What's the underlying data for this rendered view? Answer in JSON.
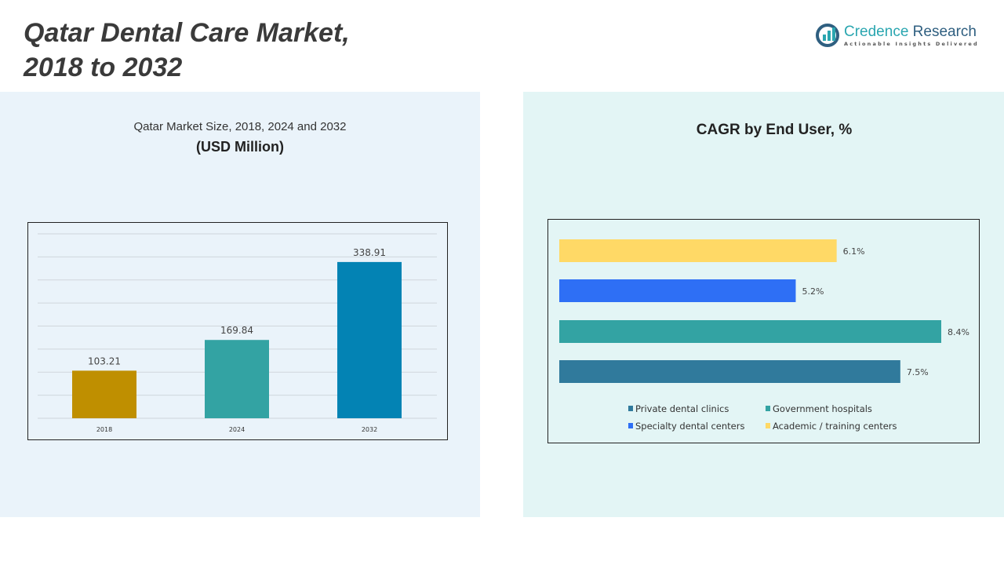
{
  "header": {
    "title_line1": "Qatar Dental Care Market,",
    "title_line2": "2018 to 2032"
  },
  "logo": {
    "name_part1": "Credence",
    "name_part2": "Research",
    "tagline": "Actionable Insights Delivered"
  },
  "chart_data": [
    {
      "type": "bar",
      "title": "Qatar Market Size, 2018, 2024 and 2032",
      "subtitle": "(USD Million)",
      "categories": [
        "2018",
        "2024",
        "2032"
      ],
      "values": [
        103.21,
        169.84,
        338.91
      ],
      "value_labels": [
        "103.21",
        "169.84",
        "338.91"
      ],
      "colors": [
        "#bf8f00",
        "#33a3a3",
        "#0383b4"
      ],
      "ylim": [
        0,
        400
      ],
      "grid": true
    },
    {
      "type": "bar",
      "orientation": "horizontal",
      "title": "CAGR by End User, %",
      "categories": [
        "Academic / training centers",
        "Specialty dental centers",
        "Government hospitals",
        "Private dental clinics"
      ],
      "values": [
        6.1,
        5.2,
        8.4,
        7.5
      ],
      "value_labels": [
        "6.1%",
        "5.2%",
        "8.4%",
        "7.5%"
      ],
      "colors": [
        "#ffd966",
        "#2e6ff5",
        "#33a3a3",
        "#307a9c"
      ],
      "xlim": [
        0,
        8.4
      ],
      "grid": false,
      "legend": {
        "placement": "bottom",
        "items": [
          {
            "label": "Private dental clinics",
            "color": "#307a9c"
          },
          {
            "label": "Government hospitals",
            "color": "#33a3a3"
          },
          {
            "label": "Specialty dental centers",
            "color": "#2e6ff5"
          },
          {
            "label": "Academic / training centers",
            "color": "#ffd966"
          }
        ]
      }
    }
  ]
}
